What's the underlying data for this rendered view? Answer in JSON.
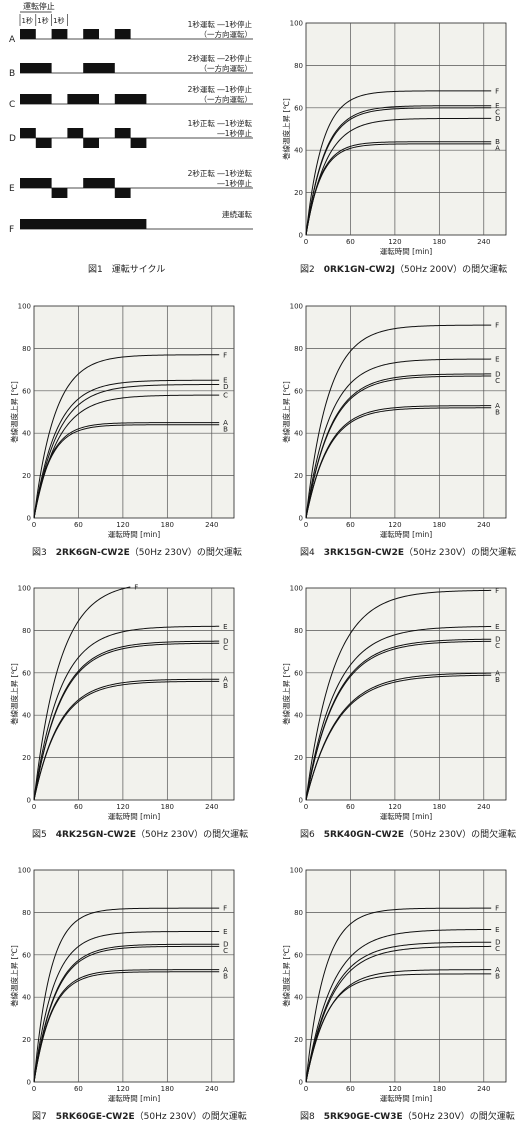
{
  "colors": {
    "plot_bg": "#f2f2ed",
    "line": "#111111",
    "grid": "#555555"
  },
  "fig1": {
    "caption": "図1　運転サイクル",
    "labels": {
      "run": "運転",
      "stop": "停止",
      "sec1": "1秒"
    },
    "rows": [
      {
        "id": "A",
        "desc": [
          "1秒運転 ―1秒停止",
          "（一方向運転）"
        ],
        "pattern": [
          [
            0,
            1,
            "u"
          ],
          [
            1,
            2,
            "o"
          ],
          [
            2,
            3,
            "u"
          ],
          [
            3,
            4,
            "o"
          ],
          [
            4,
            5,
            "u"
          ],
          [
            5,
            6,
            "o"
          ],
          [
            6,
            7,
            "u"
          ],
          [
            7,
            8,
            "o"
          ]
        ]
      },
      {
        "id": "B",
        "desc": [
          "2秒運転 ―2秒停止",
          "（一方向運転）"
        ],
        "pattern": [
          [
            0,
            2,
            "u"
          ],
          [
            2,
            4,
            "o"
          ],
          [
            4,
            6,
            "u"
          ],
          [
            6,
            8,
            "o"
          ]
        ]
      },
      {
        "id": "C",
        "desc": [
          "2秒運転 ―1秒停止",
          "（一方向運転）"
        ],
        "pattern": [
          [
            0,
            2,
            "u"
          ],
          [
            2,
            3,
            "o"
          ],
          [
            3,
            5,
            "u"
          ],
          [
            5,
            6,
            "o"
          ],
          [
            6,
            8,
            "u"
          ]
        ]
      },
      {
        "id": "D",
        "desc": [
          "1秒正転 ―1秒逆転",
          "―1秒停止"
        ],
        "pattern": [
          [
            0,
            1,
            "u"
          ],
          [
            1,
            2,
            "d"
          ],
          [
            2,
            3,
            "o"
          ],
          [
            3,
            4,
            "u"
          ],
          [
            4,
            5,
            "d"
          ],
          [
            5,
            6,
            "o"
          ],
          [
            6,
            7,
            "u"
          ],
          [
            7,
            8,
            "d"
          ]
        ]
      },
      {
        "id": "E",
        "desc": [
          "2秒正転 ―1秒逆転",
          "―1秒停止"
        ],
        "pattern": [
          [
            0,
            2,
            "u"
          ],
          [
            2,
            3,
            "d"
          ],
          [
            3,
            4,
            "o"
          ],
          [
            4,
            6,
            "u"
          ],
          [
            6,
            7,
            "d"
          ],
          [
            7,
            8,
            "o"
          ]
        ]
      },
      {
        "id": "F",
        "desc": [
          "連続運転"
        ],
        "pattern": [
          [
            0,
            8,
            "u"
          ]
        ]
      }
    ]
  },
  "chart_data": [
    {
      "type": "line",
      "caption_prefix": "図2　",
      "caption_model": "0RK1GN-CW2J",
      "caption_suffix": "（50Hz 200V）の間欠運転",
      "xlabel": "運転時間 [min]",
      "ylabel": "巻線温度上昇 [℃]",
      "xlim": [
        0,
        270
      ],
      "ylim": [
        0,
        100
      ],
      "x_ticks": [
        0,
        60,
        120,
        180,
        240
      ],
      "y_ticks": [
        0,
        20,
        40,
        60,
        80,
        100
      ],
      "grid": true,
      "series": [
        {
          "name": "F",
          "final": 68,
          "tau": 22,
          "x_end": 250
        },
        {
          "name": "E",
          "final": 61,
          "tau": 25,
          "x_end": 250
        },
        {
          "name": "C",
          "final": 60,
          "tau": 25,
          "x_end": 250
        },
        {
          "name": "D",
          "final": 55,
          "tau": 27,
          "x_end": 250
        },
        {
          "name": "B",
          "final": 44,
          "tau": 20,
          "x_end": 250
        },
        {
          "name": "A",
          "final": 43,
          "tau": 20,
          "x_end": 250
        }
      ]
    },
    {
      "type": "line",
      "caption_prefix": "図3　",
      "caption_model": "2RK6GN-CW2E",
      "caption_suffix": "（50Hz 230V）の間欠運転",
      "xlabel": "運転時間 [min]",
      "ylabel": "巻線温度上昇 [℃]",
      "xlim": [
        0,
        270
      ],
      "ylim": [
        0,
        100
      ],
      "x_ticks": [
        0,
        60,
        120,
        180,
        240
      ],
      "y_ticks": [
        0,
        20,
        40,
        60,
        80,
        100
      ],
      "grid": true,
      "series": [
        {
          "name": "F",
          "final": 77,
          "tau": 28,
          "x_end": 250
        },
        {
          "name": "E",
          "final": 65,
          "tau": 30,
          "x_end": 250
        },
        {
          "name": "D",
          "final": 63,
          "tau": 32,
          "x_end": 250
        },
        {
          "name": "C",
          "final": 58,
          "tau": 32,
          "x_end": 250
        },
        {
          "name": "A",
          "final": 45,
          "tau": 22,
          "x_end": 250
        },
        {
          "name": "B",
          "final": 44,
          "tau": 22,
          "x_end": 250
        }
      ]
    },
    {
      "type": "line",
      "caption_prefix": "図4　",
      "caption_model": "3RK15GN-CW2E",
      "caption_suffix": "（50Hz 230V）の間欠運転",
      "xlabel": "運転時間 [min]",
      "ylabel": "巻線温度上昇 [℃]",
      "xlim": [
        0,
        270
      ],
      "ylim": [
        0,
        100
      ],
      "x_ticks": [
        0,
        60,
        120,
        180,
        240
      ],
      "y_ticks": [
        0,
        20,
        40,
        60,
        80,
        100
      ],
      "grid": true,
      "series": [
        {
          "name": "F",
          "final": 91,
          "tau": 30,
          "x_end": 250
        },
        {
          "name": "E",
          "final": 75,
          "tau": 32,
          "x_end": 250
        },
        {
          "name": "D",
          "final": 68,
          "tau": 33,
          "x_end": 250
        },
        {
          "name": "C",
          "final": 67,
          "tau": 33,
          "x_end": 250
        },
        {
          "name": "A",
          "final": 53,
          "tau": 30,
          "x_end": 250
        },
        {
          "name": "B",
          "final": 52,
          "tau": 30,
          "x_end": 250
        }
      ]
    },
    {
      "type": "line",
      "caption_prefix": "図5　",
      "caption_model": "4RK25GN-CW2E",
      "caption_suffix": "（50Hz 230V）の間欠運転",
      "xlabel": "運転時間 [min]",
      "ylabel": "巻線温度上昇 [℃]",
      "xlim": [
        0,
        270
      ],
      "ylim": [
        0,
        100
      ],
      "x_ticks": [
        0,
        60,
        120,
        180,
        240
      ],
      "y_ticks": [
        0,
        20,
        40,
        60,
        80,
        100
      ],
      "grid": true,
      "series": [
        {
          "name": "F",
          "final": 103,
          "tau": 35,
          "x_end": 130
        },
        {
          "name": "E",
          "final": 82,
          "tau": 35,
          "x_end": 250
        },
        {
          "name": "D",
          "final": 75,
          "tau": 36,
          "x_end": 250
        },
        {
          "name": "C",
          "final": 74,
          "tau": 36,
          "x_end": 250
        },
        {
          "name": "A",
          "final": 57,
          "tau": 34,
          "x_end": 250
        },
        {
          "name": "B",
          "final": 56,
          "tau": 34,
          "x_end": 250
        }
      ]
    },
    {
      "type": "line",
      "caption_prefix": "図6　",
      "caption_model": "5RK40GN-CW2E",
      "caption_suffix": "（50Hz 230V）の間欠運転",
      "xlabel": "運転時間 [min]",
      "ylabel": "巻線温度上昇 [℃]",
      "xlim": [
        0,
        270
      ],
      "ylim": [
        0,
        100
      ],
      "x_ticks": [
        0,
        60,
        120,
        180,
        240
      ],
      "y_ticks": [
        0,
        20,
        40,
        60,
        80,
        100
      ],
      "grid": true,
      "series": [
        {
          "name": "F",
          "final": 99,
          "tau": 38,
          "x_end": 250
        },
        {
          "name": "E",
          "final": 82,
          "tau": 40,
          "x_end": 250
        },
        {
          "name": "D",
          "final": 76,
          "tau": 40,
          "x_end": 250
        },
        {
          "name": "C",
          "final": 75,
          "tau": 40,
          "x_end": 250
        },
        {
          "name": "A",
          "final": 60,
          "tau": 42,
          "x_end": 250
        },
        {
          "name": "B",
          "final": 59,
          "tau": 42,
          "x_end": 250
        }
      ]
    },
    {
      "type": "line",
      "caption_prefix": "図7　",
      "caption_model": "5RK60GE-CW2E",
      "caption_suffix": "（50Hz 230V）の間欠運転",
      "xlabel": "運転時間 [min]",
      "ylabel": "巻線温度上昇 [℃]",
      "xlim": [
        0,
        270
      ],
      "ylim": [
        0,
        100
      ],
      "x_ticks": [
        0,
        60,
        120,
        180,
        240
      ],
      "y_ticks": [
        0,
        20,
        40,
        60,
        80,
        100
      ],
      "grid": true,
      "series": [
        {
          "name": "F",
          "final": 82,
          "tau": 22,
          "x_end": 250
        },
        {
          "name": "E",
          "final": 71,
          "tau": 26,
          "x_end": 250
        },
        {
          "name": "D",
          "final": 65,
          "tau": 28,
          "x_end": 250
        },
        {
          "name": "C",
          "final": 64,
          "tau": 28,
          "x_end": 250
        },
        {
          "name": "A",
          "final": 53,
          "tau": 24,
          "x_end": 250
        },
        {
          "name": "B",
          "final": 52,
          "tau": 24,
          "x_end": 250
        }
      ]
    },
    {
      "type": "line",
      "caption_prefix": "図8　",
      "caption_model": "5RK90GE-CW3E",
      "caption_suffix": "（50Hz 230V）の間欠運転",
      "xlabel": "運転時間 [min]",
      "ylabel": "巻線温度上昇 [℃]",
      "xlim": [
        0,
        270
      ],
      "ylim": [
        0,
        100
      ],
      "x_ticks": [
        0,
        60,
        120,
        180,
        240
      ],
      "y_ticks": [
        0,
        20,
        40,
        60,
        80,
        100
      ],
      "grid": true,
      "series": [
        {
          "name": "F",
          "final": 82,
          "tau": 25,
          "x_end": 250
        },
        {
          "name": "E",
          "final": 72,
          "tau": 35,
          "x_end": 250
        },
        {
          "name": "D",
          "final": 66,
          "tau": 35,
          "x_end": 250
        },
        {
          "name": "C",
          "final": 64,
          "tau": 35,
          "x_end": 250
        },
        {
          "name": "A",
          "final": 53,
          "tau": 30,
          "x_end": 250
        },
        {
          "name": "B",
          "final": 51,
          "tau": 28,
          "x_end": 250
        }
      ]
    }
  ]
}
